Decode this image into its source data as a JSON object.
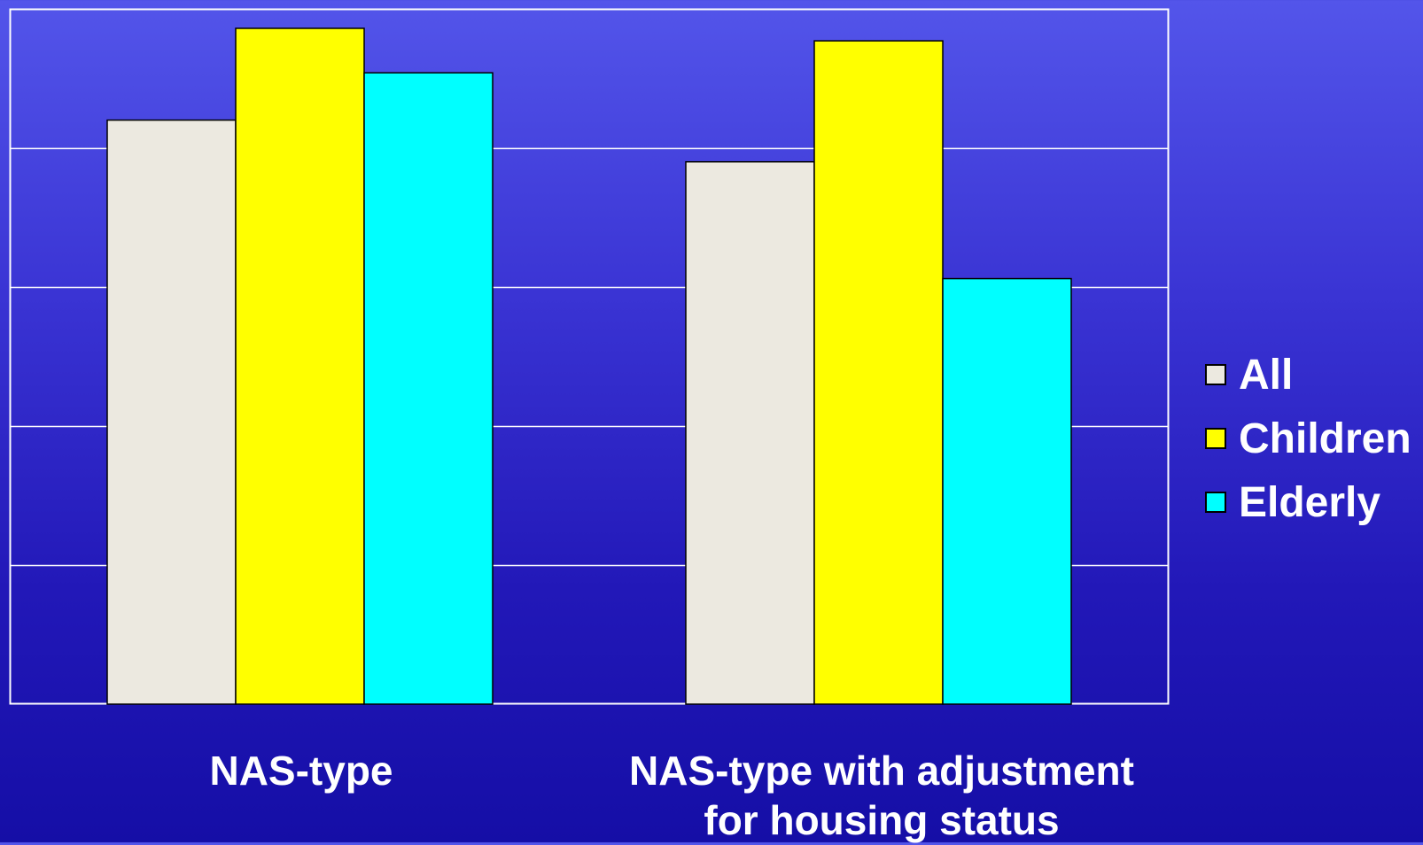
{
  "chart_data": {
    "type": "bar",
    "categories": [
      "NAS-type",
      "NAS-type with adjustment\nfor housing status"
    ],
    "series": [
      {
        "name": "All",
        "color": "#ece9e0",
        "values": [
          4.2,
          3.9
        ]
      },
      {
        "name": "Children",
        "color": "#ffff00",
        "values": [
          4.86,
          4.77
        ]
      },
      {
        "name": "Elderly",
        "color": "#00ffff",
        "values": [
          4.54,
          3.06
        ]
      }
    ],
    "ylim": [
      0,
      5
    ],
    "yticks": [
      0,
      1,
      2,
      3,
      4,
      5
    ],
    "grid": true,
    "legend": "right",
    "title": "",
    "xlabel": "",
    "ylabel": ""
  }
}
